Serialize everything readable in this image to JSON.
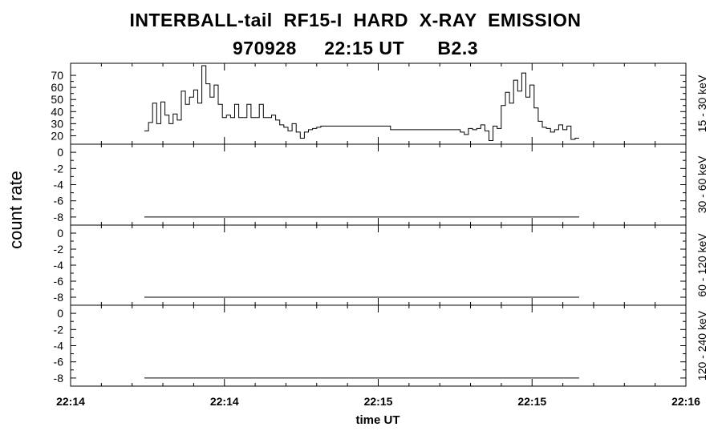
{
  "title": {
    "line1": "INTERBALL-tail  RF15-I  HARD  X-RAY  EMISSION",
    "line2": "970928     22:15 UT      B2.3"
  },
  "chart_data": {
    "type": "line",
    "ylabel": "count rate",
    "xlabel": "time UT",
    "x_tick_labels": [
      "22:14",
      "22:14",
      "22:15",
      "22:15",
      "22:16"
    ],
    "panels": [
      {
        "label": "15 - 30 keV",
        "ylim": [
          13,
          80
        ],
        "y_ticks": [
          20,
          30,
          40,
          50,
          60,
          70
        ],
        "y_tick_labels": [
          "20",
          "30",
          "40",
          "50",
          "60",
          "70"
        ],
        "step_values": [
          24,
          31,
          47,
          30,
          48,
          37,
          30,
          38,
          33,
          57,
          46,
          52,
          58,
          47,
          78,
          63,
          52,
          62,
          46,
          35,
          37,
          35,
          46,
          35,
          35,
          46,
          35,
          35,
          46,
          35,
          35,
          37,
          33,
          29,
          27,
          24,
          30,
          23,
          18,
          23,
          25,
          26,
          27,
          28,
          28,
          28,
          28,
          28,
          28,
          28,
          28,
          28,
          28,
          28,
          28,
          28,
          28,
          28,
          28,
          28,
          25,
          25,
          25,
          25,
          25,
          25,
          25,
          25,
          25,
          25,
          25,
          25,
          25,
          25,
          25,
          25,
          25,
          23,
          21,
          26,
          25,
          26,
          29,
          24,
          16,
          28,
          26,
          45,
          56,
          47,
          66,
          57,
          72,
          52,
          62,
          43,
          32,
          27,
          26,
          23,
          25,
          29,
          25,
          28,
          17,
          18
        ]
      },
      {
        "label": "30 - 60 keV",
        "ylim": [
          -9,
          1
        ],
        "y_ticks": [
          0,
          -2,
          -4,
          -6,
          -8
        ],
        "y_tick_labels": [
          "0",
          "-2",
          "-4",
          "-6",
          "-8"
        ],
        "value": -8
      },
      {
        "label": "60 - 120 keV",
        "ylim": [
          -9,
          1
        ],
        "y_ticks": [
          0,
          -2,
          -4,
          -6,
          -8
        ],
        "y_tick_labels": [
          "0",
          "-2",
          "-4",
          "-6",
          "-8"
        ],
        "value": -8
      },
      {
        "label": "120 - 240 keV",
        "ylim": [
          -9,
          1
        ],
        "y_ticks": [
          0,
          -2,
          -4,
          -6,
          -8
        ],
        "y_tick_labels": [
          "0",
          "-2",
          "-4",
          "-6",
          "-8"
        ],
        "value": -8
      }
    ]
  }
}
